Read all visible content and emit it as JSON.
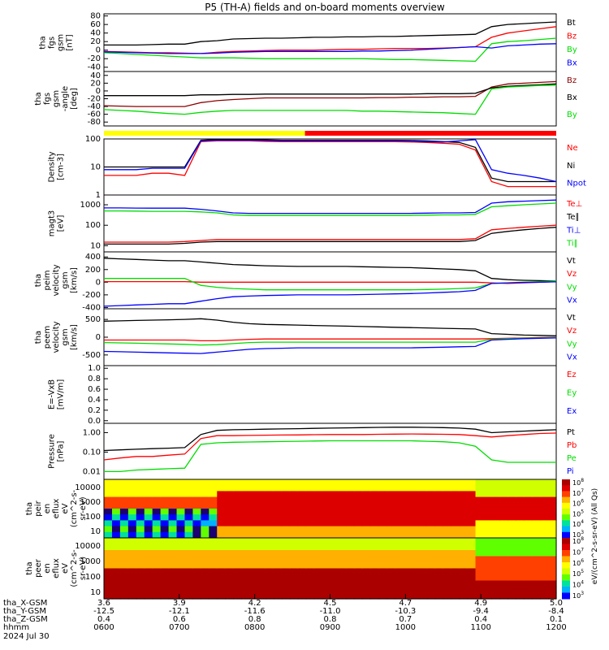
{
  "title": "P5 (TH-A) fields and on-board moments overview",
  "chart_data": [
    {
      "type": "line",
      "ylabel": [
        "tha",
        "fgs",
        "gsm",
        "[nT]"
      ],
      "yticks": [
        80,
        60,
        40,
        20,
        0,
        -20,
        -40
      ],
      "ylim": [
        -50,
        85
      ],
      "series": [
        {
          "name": "Bt",
          "color": "#000000",
          "values": [
            12,
            12,
            12,
            13,
            14,
            14,
            20,
            22,
            26,
            27,
            28,
            28,
            29,
            30,
            30,
            31,
            31,
            32,
            32,
            33,
            34,
            35,
            36,
            37,
            55,
            60,
            62,
            64,
            66
          ]
        },
        {
          "name": "Bz",
          "color": "#ff0000",
          "values": [
            -3,
            -4,
            -5,
            -6,
            -6,
            -7,
            -8,
            -5,
            -3,
            -2,
            -1,
            0,
            0,
            0,
            1,
            2,
            2,
            3,
            4,
            4,
            4,
            5,
            6,
            8,
            30,
            40,
            45,
            50,
            55
          ]
        },
        {
          "name": "By",
          "color": "#00dd00",
          "values": [
            -6,
            -8,
            -10,
            -12,
            -14,
            -16,
            -18,
            -18,
            -18,
            -19,
            -20,
            -20,
            -20,
            -20,
            -20,
            -20,
            -20,
            -21,
            -22,
            -22,
            -23,
            -24,
            -25,
            -26,
            15,
            20,
            22,
            25,
            28
          ]
        },
        {
          "name": "Bx",
          "color": "#0000ff",
          "values": [
            -4,
            -5,
            -6,
            -7,
            -8,
            -8,
            -8,
            -7,
            -5,
            -4,
            -3,
            -3,
            -3,
            -3,
            -3,
            -3,
            -2,
            -2,
            -1,
            0,
            2,
            4,
            6,
            8,
            5,
            10,
            12,
            14,
            15
          ]
        }
      ]
    },
    {
      "type": "line",
      "ylabel": [
        "tha",
        "fgs",
        "gsm",
        "-angle",
        "[deg]"
      ],
      "yticks": [
        40,
        20,
        0,
        -20,
        -40,
        -60,
        -80
      ],
      "ylim": [
        -90,
        50
      ],
      "series": [
        {
          "name": "Bz",
          "color": "#8b0000",
          "values": [
            -38,
            -39,
            -40,
            -40,
            -40,
            -40,
            -30,
            -25,
            -22,
            -20,
            -18,
            -18,
            -18,
            -18,
            -18,
            -18,
            -18,
            -17,
            -17,
            -16,
            -16,
            -15,
            -15,
            -14,
            10,
            18,
            20,
            22,
            24
          ]
        },
        {
          "name": "Bx",
          "color": "#000000",
          "values": [
            -12,
            -12,
            -12,
            -12,
            -12,
            -12,
            -10,
            -10,
            -9,
            -9,
            -8,
            -8,
            -8,
            -8,
            -8,
            -8,
            -8,
            -8,
            -8,
            -8,
            -7,
            -7,
            -7,
            -6,
            8,
            12,
            14,
            16,
            18
          ]
        },
        {
          "name": "By",
          "color": "#00dd00",
          "values": [
            -48,
            -50,
            -52,
            -55,
            -58,
            -60,
            -55,
            -52,
            -50,
            -50,
            -50,
            -50,
            -50,
            -50,
            -50,
            -50,
            -52,
            -52,
            -53,
            -54,
            -55,
            -56,
            -58,
            -60,
            5,
            10,
            12,
            14,
            15
          ]
        }
      ]
    },
    {
      "type": "line",
      "scale": "log",
      "ylabel": [
        "Density",
        "[cm-3]"
      ],
      "yticks": [
        "100",
        "10",
        "1"
      ],
      "ylim": [
        1,
        100
      ],
      "series": [
        {
          "name": "Ne",
          "color": "#ff0000",
          "values": [
            5,
            5,
            5,
            6,
            6,
            5,
            80,
            85,
            85,
            85,
            82,
            80,
            80,
            80,
            80,
            80,
            80,
            80,
            80,
            78,
            75,
            70,
            65,
            40,
            3,
            2,
            2,
            2,
            2
          ]
        },
        {
          "name": "Ni",
          "color": "#000000",
          "values": [
            10,
            10,
            10,
            10,
            10,
            10,
            90,
            95,
            95,
            95,
            92,
            90,
            90,
            90,
            90,
            90,
            90,
            90,
            90,
            88,
            85,
            80,
            75,
            50,
            4,
            3,
            3,
            3,
            3
          ]
        },
        {
          "name": "Npot",
          "color": "#0000ff",
          "values": [
            8,
            8,
            8,
            9,
            9,
            9,
            85,
            90,
            90,
            90,
            88,
            86,
            86,
            86,
            86,
            86,
            86,
            86,
            86,
            84,
            80,
            78,
            85,
            95,
            8,
            6,
            5,
            4,
            3
          ]
        }
      ]
    },
    {
      "type": "line",
      "scale": "log",
      "ylabel": [
        "magt3",
        "[eV]"
      ],
      "yticks": [
        "1000",
        "100",
        "10"
      ],
      "ylim": [
        5,
        3000
      ],
      "series": [
        {
          "name": "Te⊥",
          "color": "#ff0000",
          "values": [
            15,
            15,
            15,
            15,
            15,
            16,
            18,
            20,
            20,
            20,
            20,
            20,
            20,
            20,
            20,
            20,
            20,
            20,
            20,
            20,
            20,
            20,
            20,
            22,
            60,
            70,
            80,
            90,
            100
          ]
        },
        {
          "name": "Te∥",
          "color": "#000000",
          "values": [
            12,
            12,
            12,
            12,
            12,
            13,
            15,
            16,
            16,
            16,
            16,
            16,
            16,
            16,
            16,
            16,
            16,
            16,
            16,
            16,
            16,
            16,
            16,
            18,
            40,
            50,
            60,
            70,
            80
          ]
        },
        {
          "name": "Ti⊥",
          "color": "#0000ff",
          "values": [
            700,
            700,
            690,
            680,
            680,
            680,
            600,
            500,
            400,
            380,
            380,
            380,
            380,
            380,
            380,
            380,
            380,
            380,
            380,
            380,
            390,
            400,
            400,
            420,
            1200,
            1400,
            1500,
            1600,
            1700
          ]
        },
        {
          "name": "Ti∥",
          "color": "#00dd00",
          "values": [
            500,
            500,
            490,
            480,
            480,
            480,
            450,
            400,
            320,
            300,
            300,
            300,
            300,
            300,
            300,
            300,
            300,
            300,
            300,
            300,
            310,
            320,
            320,
            340,
            800,
            900,
            1000,
            1100,
            1200
          ]
        }
      ]
    },
    {
      "type": "line",
      "ylabel": [
        "tha",
        "peim",
        "velocity",
        "gsm",
        "[km/s]"
      ],
      "yticks": [
        400,
        200,
        0,
        -200,
        -400
      ],
      "ylim": [
        -420,
        480
      ],
      "series": [
        {
          "name": "Vt",
          "color": "#000000",
          "values": [
            380,
            370,
            360,
            350,
            340,
            340,
            320,
            300,
            280,
            270,
            260,
            255,
            250,
            250,
            250,
            250,
            245,
            240,
            235,
            230,
            220,
            210,
            200,
            180,
            60,
            40,
            30,
            25,
            20
          ]
        },
        {
          "name": "Vz",
          "color": "#ff0000",
          "values": [
            10,
            10,
            10,
            10,
            10,
            10,
            0,
            0,
            0,
            0,
            0,
            0,
            0,
            0,
            0,
            0,
            0,
            0,
            0,
            0,
            0,
            0,
            0,
            0,
            -10,
            -20,
            -10,
            0,
            10
          ]
        },
        {
          "name": "Vy",
          "color": "#00dd00",
          "values": [
            60,
            60,
            60,
            60,
            60,
            60,
            -50,
            -80,
            -100,
            -110,
            -120,
            -120,
            -120,
            -120,
            -120,
            -120,
            -120,
            -120,
            -120,
            -120,
            -115,
            -110,
            -100,
            -90,
            -20,
            -10,
            0,
            10,
            20
          ]
        },
        {
          "name": "Vx",
          "color": "#0000ff",
          "values": [
            -380,
            -370,
            -360,
            -350,
            -340,
            -340,
            -300,
            -260,
            -230,
            -220,
            -210,
            -205,
            -200,
            -200,
            -200,
            -200,
            -195,
            -190,
            -185,
            -180,
            -170,
            -160,
            -150,
            -130,
            -20,
            -10,
            -5,
            0,
            5
          ]
        }
      ]
    },
    {
      "type": "line",
      "ylabel": [
        "tha",
        "peem",
        "velocity",
        "gsm",
        "[km/s]"
      ],
      "yticks": [
        500,
        0,
        -500
      ],
      "ylim": [
        -800,
        800
      ],
      "series": [
        {
          "name": "Vt",
          "color": "#000000",
          "values": [
            450,
            460,
            470,
            480,
            490,
            500,
            520,
            480,
            420,
            380,
            360,
            350,
            340,
            330,
            320,
            310,
            300,
            290,
            280,
            270,
            260,
            250,
            240,
            230,
            100,
            80,
            60,
            50,
            40
          ]
        },
        {
          "name": "Vz",
          "color": "#ff0000",
          "values": [
            -80,
            -80,
            -80,
            -80,
            -80,
            -80,
            -100,
            -100,
            -80,
            -60,
            -50,
            -50,
            -50,
            -50,
            -50,
            -50,
            -50,
            -50,
            -50,
            -50,
            -50,
            -50,
            -50,
            -50,
            -40,
            -30,
            -20,
            -10,
            0
          ]
        },
        {
          "name": "Vy",
          "color": "#00dd00",
          "values": [
            -150,
            -160,
            -170,
            -180,
            -190,
            -200,
            -220,
            -210,
            -180,
            -150,
            -140,
            -140,
            -140,
            -140,
            -140,
            -140,
            -140,
            -140,
            -140,
            -140,
            -140,
            -140,
            -140,
            -140,
            -60,
            -40,
            -30,
            -20,
            -10
          ]
        },
        {
          "name": "Vx",
          "color": "#0000ff",
          "values": [
            -400,
            -410,
            -420,
            -430,
            -440,
            -450,
            -460,
            -420,
            -380,
            -340,
            -320,
            -310,
            -300,
            -300,
            -300,
            -300,
            -300,
            -300,
            -300,
            -300,
            -290,
            -280,
            -270,
            -260,
            -80,
            -60,
            -40,
            -30,
            -20
          ]
        }
      ]
    },
    {
      "type": "line",
      "ylabel": [
        "E=-VxB",
        "[mV/m]"
      ],
      "yticks": [
        "1.0",
        "0.8",
        "0.6",
        "0.4",
        "0.2",
        "0.0"
      ],
      "ylim": [
        -0.05,
        1.05
      ],
      "series": [
        {
          "name": "Ez",
          "color": "#ff0000",
          "values": []
        },
        {
          "name": "Ey",
          "color": "#00dd00",
          "values": []
        },
        {
          "name": "Ex",
          "color": "#0000ff",
          "values": []
        }
      ]
    },
    {
      "type": "line",
      "scale": "log",
      "ylabel": [
        "Pressure",
        "[nPa]"
      ],
      "yticks": [
        "1.00",
        "0.10",
        "0.01"
      ],
      "ylim": [
        0.004,
        3
      ],
      "series": [
        {
          "name": "Pt",
          "color": "#000000",
          "values": [
            0.12,
            0.13,
            0.14,
            0.15,
            0.16,
            0.17,
            0.8,
            1.3,
            1.4,
            1.45,
            1.5,
            1.55,
            1.6,
            1.65,
            1.7,
            1.75,
            1.8,
            1.85,
            1.9,
            1.9,
            1.85,
            1.8,
            1.7,
            1.5,
            1.0,
            1.1,
            1.2,
            1.3,
            1.4
          ]
        },
        {
          "name": "Pb",
          "color": "#ff0000",
          "values": [
            0.04,
            0.05,
            0.06,
            0.06,
            0.07,
            0.08,
            0.5,
            0.7,
            0.7,
            0.72,
            0.74,
            0.75,
            0.76,
            0.78,
            0.8,
            0.8,
            0.8,
            0.82,
            0.84,
            0.85,
            0.84,
            0.82,
            0.8,
            0.7,
            0.6,
            0.7,
            0.8,
            0.9,
            0.95
          ]
        },
        {
          "name": "Pe",
          "color": "#00dd00",
          "values": [
            0.01,
            0.01,
            0.012,
            0.013,
            0.014,
            0.015,
            0.25,
            0.3,
            0.32,
            0.33,
            0.34,
            0.35,
            0.36,
            0.37,
            0.38,
            0.38,
            0.38,
            0.38,
            0.38,
            0.38,
            0.36,
            0.34,
            0.3,
            0.2,
            0.04,
            0.03,
            0.03,
            0.03,
            0.03
          ]
        },
        {
          "name": "Pi",
          "color": "#0000ff",
          "values": []
        }
      ]
    },
    {
      "type": "heatmap",
      "ylabel": [
        "tha",
        "peir",
        "en",
        "eflux",
        "eV",
        "(cm^2-s-",
        "sr-eV)"
      ],
      "yticks": [
        "10000",
        "1000",
        "100",
        "10"
      ],
      "colorbar": {
        "ticks": [
          "10^8",
          "10^7",
          "10^6",
          "10^5",
          "10^4",
          "10^3"
        ],
        "label": "eV/(cm^2-s-sr-eV) (All Qs)"
      }
    },
    {
      "type": "heatmap",
      "ylabel": [
        "tha",
        "peer",
        "en",
        "eflux",
        "eV",
        "(cm^2-s-",
        "sr-eV)"
      ],
      "yticks": [
        "10000",
        "1000",
        "100",
        "10"
      ],
      "colorbar": {
        "ticks": [
          "10^8",
          "10^7",
          "10^6",
          "10^5",
          "10^4",
          "10^3"
        ]
      }
    }
  ],
  "mode_bar": [
    {
      "from": "0600",
      "to": "0840",
      "color": "#ffff00"
    },
    {
      "from": "0840",
      "to": "1200",
      "color": "#ff0000"
    }
  ],
  "x_axis": {
    "hhmm": [
      "0600",
      "0700",
      "0800",
      "0900",
      "1000",
      "1100",
      "1200"
    ],
    "rows": [
      {
        "label": "tha_X-GSM",
        "values": [
          "3.6",
          "3.9",
          "4.2",
          "4.5",
          "4.7",
          "4.9",
          "5.0"
        ]
      },
      {
        "label": "tha_Y-GSM",
        "values": [
          "-12.5",
          "-12.1",
          "-11.6",
          "-11.0",
          "-10.3",
          "-9.4",
          "-8.4"
        ]
      },
      {
        "label": "tha_Z-GSM",
        "values": [
          "0.4",
          "0.6",
          "0.8",
          "0.8",
          "0.7",
          "0.4",
          "0.1"
        ]
      },
      {
        "label": "hhmm",
        "values": []
      },
      {
        "label": "2024 Jul 30",
        "values": []
      }
    ]
  }
}
